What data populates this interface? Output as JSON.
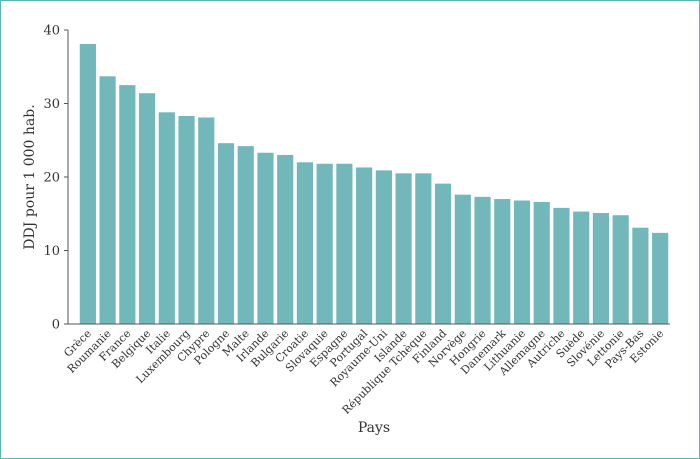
{
  "chart_data": {
    "type": "bar",
    "xlabel": "Pays",
    "ylabel": "DDJ pour 1 000 hab.",
    "ylim": [
      0,
      40
    ],
    "yticks": [
      0,
      10,
      20,
      30,
      40
    ],
    "grid": false,
    "bar_color": "#72b8bb",
    "categories": [
      "Grèce",
      "Roumanie",
      "France",
      "Belgique",
      "Italie",
      "Luxembourg",
      "Chypre",
      "Pologne",
      "Malte",
      "Irlande",
      "Bulgarie",
      "Croatie",
      "Slovaquie",
      "Espagne",
      "Portugal",
      "Royaume-Uni",
      "Islande",
      "République Tchèque",
      "Finland",
      "Norvège",
      "Hongrie",
      "Danemark",
      "Lithuanie",
      "Allemagne",
      "Autriche",
      "Suède",
      "Slovénie",
      "Lettonie",
      "Pays-Bas",
      "Estonie"
    ],
    "values": [
      38.1,
      33.7,
      32.5,
      31.4,
      28.8,
      28.3,
      28.1,
      24.6,
      24.2,
      23.3,
      23.0,
      22.0,
      21.8,
      21.8,
      21.3,
      20.9,
      20.5,
      20.5,
      19.1,
      17.6,
      17.3,
      17.0,
      16.8,
      16.6,
      15.8,
      15.3,
      15.1,
      14.8,
      13.1,
      12.4
    ]
  }
}
